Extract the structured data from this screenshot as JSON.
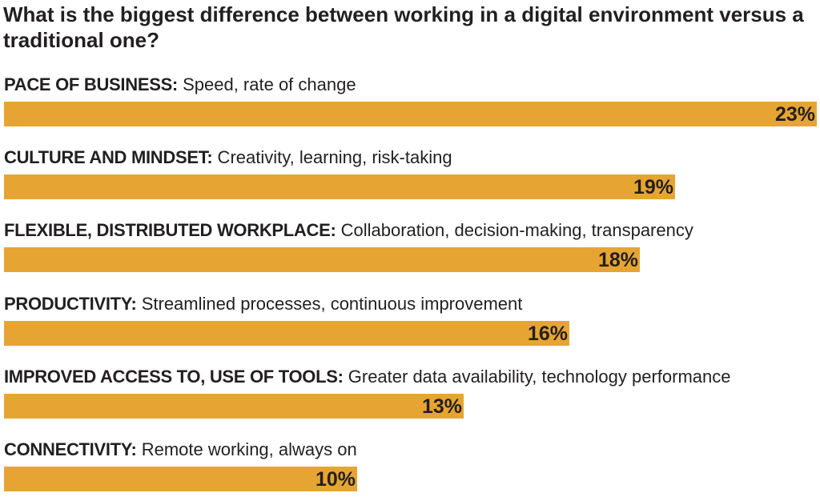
{
  "title": "What is the biggest difference between working in a digital environment versus a traditional one?",
  "colors": {
    "bar": "#e6a532",
    "text": "#231f20"
  },
  "chart_data": {
    "type": "bar",
    "orientation": "horizontal",
    "title": "What is the biggest difference between working in a digital environment versus a traditional one?",
    "xlim": [
      0,
      23
    ],
    "grid": false,
    "categories": [
      {
        "name": "PACE OF BUSINESS:",
        "description": "Speed, rate of change",
        "value": 23,
        "label": "23%"
      },
      {
        "name": "CULTURE AND MINDSET:",
        "description": "Creativity, learning, risk-taking",
        "value": 19,
        "label": "19%"
      },
      {
        "name": "FLEXIBLE, DISTRIBUTED WORKPLACE:",
        "description": "Collaboration, decision-making, transparency",
        "value": 18,
        "label": "18%"
      },
      {
        "name": "PRODUCTIVITY:",
        "description": "Streamlined processes, continuous improvement",
        "value": 16,
        "label": "16%"
      },
      {
        "name": "IMPROVED ACCESS TO, USE OF TOOLS:",
        "description": "Greater data availability, technology performance",
        "value": 13,
        "label": "13%"
      },
      {
        "name": "CONNECTIVITY:",
        "description": "Remote working, always on",
        "value": 10,
        "label": "10%"
      }
    ]
  }
}
